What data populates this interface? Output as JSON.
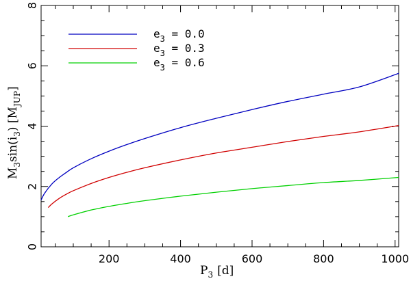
{
  "chart_data": {
    "type": "line",
    "xlabel": {
      "main": "P",
      "sub": "3",
      "unit": "[d]"
    },
    "ylabel": {
      "pre": "M",
      "pre_sub": "3",
      "mid": "sin(i",
      "mid_sub": "3",
      "post": ")  [M",
      "unit_sub": "JUP",
      "close": "]"
    },
    "xlim": [
      10,
      1010
    ],
    "ylim": [
      0,
      8
    ],
    "x_ticks_major": [
      200,
      400,
      600,
      800,
      1000
    ],
    "x_tick_labels": [
      "200",
      "400",
      "600",
      "800",
      "1000"
    ],
    "x_ticks_minor_step": 50,
    "y_ticks_major": [
      0,
      2,
      4,
      6,
      8
    ],
    "y_tick_labels": [
      "0",
      "2",
      "4",
      "6",
      "8"
    ],
    "y_ticks_minor_step": 0.5,
    "grid": false,
    "legend_placement": "top-left",
    "series": [
      {
        "legend": {
          "pre": "e",
          "sub": "3",
          "post": " = 0.0"
        },
        "color": "#0000c0",
        "x": [
          10,
          20,
          40,
          60,
          80,
          100,
          150,
          200,
          250,
          300,
          400,
          500,
          600,
          700,
          800,
          900,
          1010
        ],
        "y": [
          1.55,
          1.78,
          2.08,
          2.29,
          2.46,
          2.62,
          2.92,
          3.17,
          3.39,
          3.59,
          3.95,
          4.26,
          4.55,
          4.82,
          5.06,
          5.3,
          5.75
        ]
      },
      {
        "legend": {
          "pre": "e",
          "sub": "3",
          "post": " = 0.3"
        },
        "color": "#d00000",
        "x": [
          30,
          40,
          60,
          80,
          100,
          150,
          200,
          250,
          300,
          400,
          500,
          600,
          700,
          800,
          900,
          1010
        ],
        "y": [
          1.3,
          1.42,
          1.6,
          1.74,
          1.86,
          2.1,
          2.3,
          2.47,
          2.62,
          2.88,
          3.11,
          3.3,
          3.49,
          3.66,
          3.81,
          4.02
        ]
      },
      {
        "legend": {
          "pre": "e",
          "sub": "3",
          "post": " = 0.6"
        },
        "color": "#00d000",
        "x": [
          85,
          100,
          150,
          200,
          250,
          300,
          400,
          500,
          600,
          700,
          800,
          900,
          1010
        ],
        "y": [
          1.0,
          1.06,
          1.22,
          1.34,
          1.44,
          1.53,
          1.68,
          1.81,
          1.93,
          2.03,
          2.13,
          2.2,
          2.3
        ]
      }
    ]
  }
}
